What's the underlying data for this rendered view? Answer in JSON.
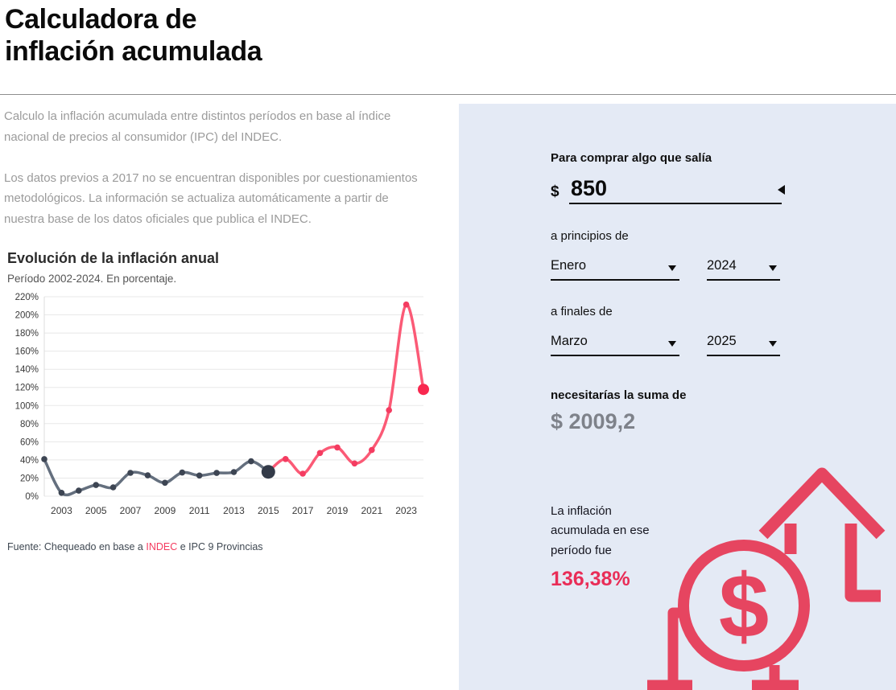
{
  "header": {
    "title_line1": "Calculadora de",
    "title_line2": "inflación acumulada"
  },
  "intro": {
    "paragraph1": "Calculo la inflación acumulada entre distintos períodos en base al índice nacional de precios al consumidor (IPC) del INDEC.",
    "paragraph2": "Los datos previos a 2017 no se encuentran disponibles por cuestionamientos metodológicos. La información se actualiza automáticamente a partir de nuestra base de los datos oficiales que publica el INDEC."
  },
  "chart": {
    "title": "Evolución de la inflación anual",
    "subtitle": "Período 2002-2024. En porcentaje.",
    "source_prefix": "Fuente: Chequeado en base a ",
    "source_link": "INDEC",
    "source_suffix": " e IPC 9 Provincias"
  },
  "chart_data": {
    "type": "line",
    "title": "Evolución de la inflación anual",
    "xlabel": "",
    "ylabel": "",
    "x": [
      2002,
      2003,
      2004,
      2005,
      2006,
      2007,
      2008,
      2009,
      2010,
      2011,
      2012,
      2013,
      2014,
      2015,
      2016,
      2017,
      2018,
      2019,
      2020,
      2021,
      2022,
      2023,
      2024
    ],
    "values": [
      40.9,
      3.7,
      6.1,
      12.3,
      9.8,
      25.7,
      23.0,
      14.8,
      26.1,
      22.8,
      25.6,
      26.6,
      38.5,
      26.9,
      41.0,
      24.8,
      47.6,
      53.8,
      36.1,
      50.9,
      94.8,
      211.4,
      117.8
    ],
    "ylim": [
      0,
      220
    ],
    "ytick_step": 20,
    "ytick_suffix": "%",
    "xticks": [
      2003,
      2005,
      2007,
      2009,
      2011,
      2013,
      2015,
      2017,
      2019,
      2021,
      2023
    ],
    "split_year": 2015,
    "grid": true,
    "legend": false,
    "colors": {
      "line_historic": "#646f7e",
      "dot_historic": "#3d4553",
      "line_recent": "#fb5a76",
      "dot_recent": "#f43c61",
      "dot_split": "#333a48",
      "dot_last": "#f8284f",
      "grid": "#e8e8e8",
      "axis": "#dddddd",
      "tick_text": "#3a3a3a"
    }
  },
  "calculator": {
    "label_amount": "Para comprar algo que salía",
    "currency_symbol": "$",
    "amount_value": "850",
    "label_start": "a principios de",
    "start_month": "Enero",
    "start_year": "2024",
    "label_end": "a finales de",
    "end_month": "Marzo",
    "end_year": "2025",
    "label_result": "necesitarías la suma de",
    "result_amount": "$ 2009,2",
    "inflation_text": "La inflación acumulada en ese período fue",
    "inflation_value": "136,38%"
  },
  "icon": {
    "dollar_glyph": "$"
  },
  "colors": {
    "accent_pink": "#e92d57",
    "icon_pink": "#e64560",
    "panel_background": "#e4eaf5",
    "link_pink": "#f43b5f"
  }
}
